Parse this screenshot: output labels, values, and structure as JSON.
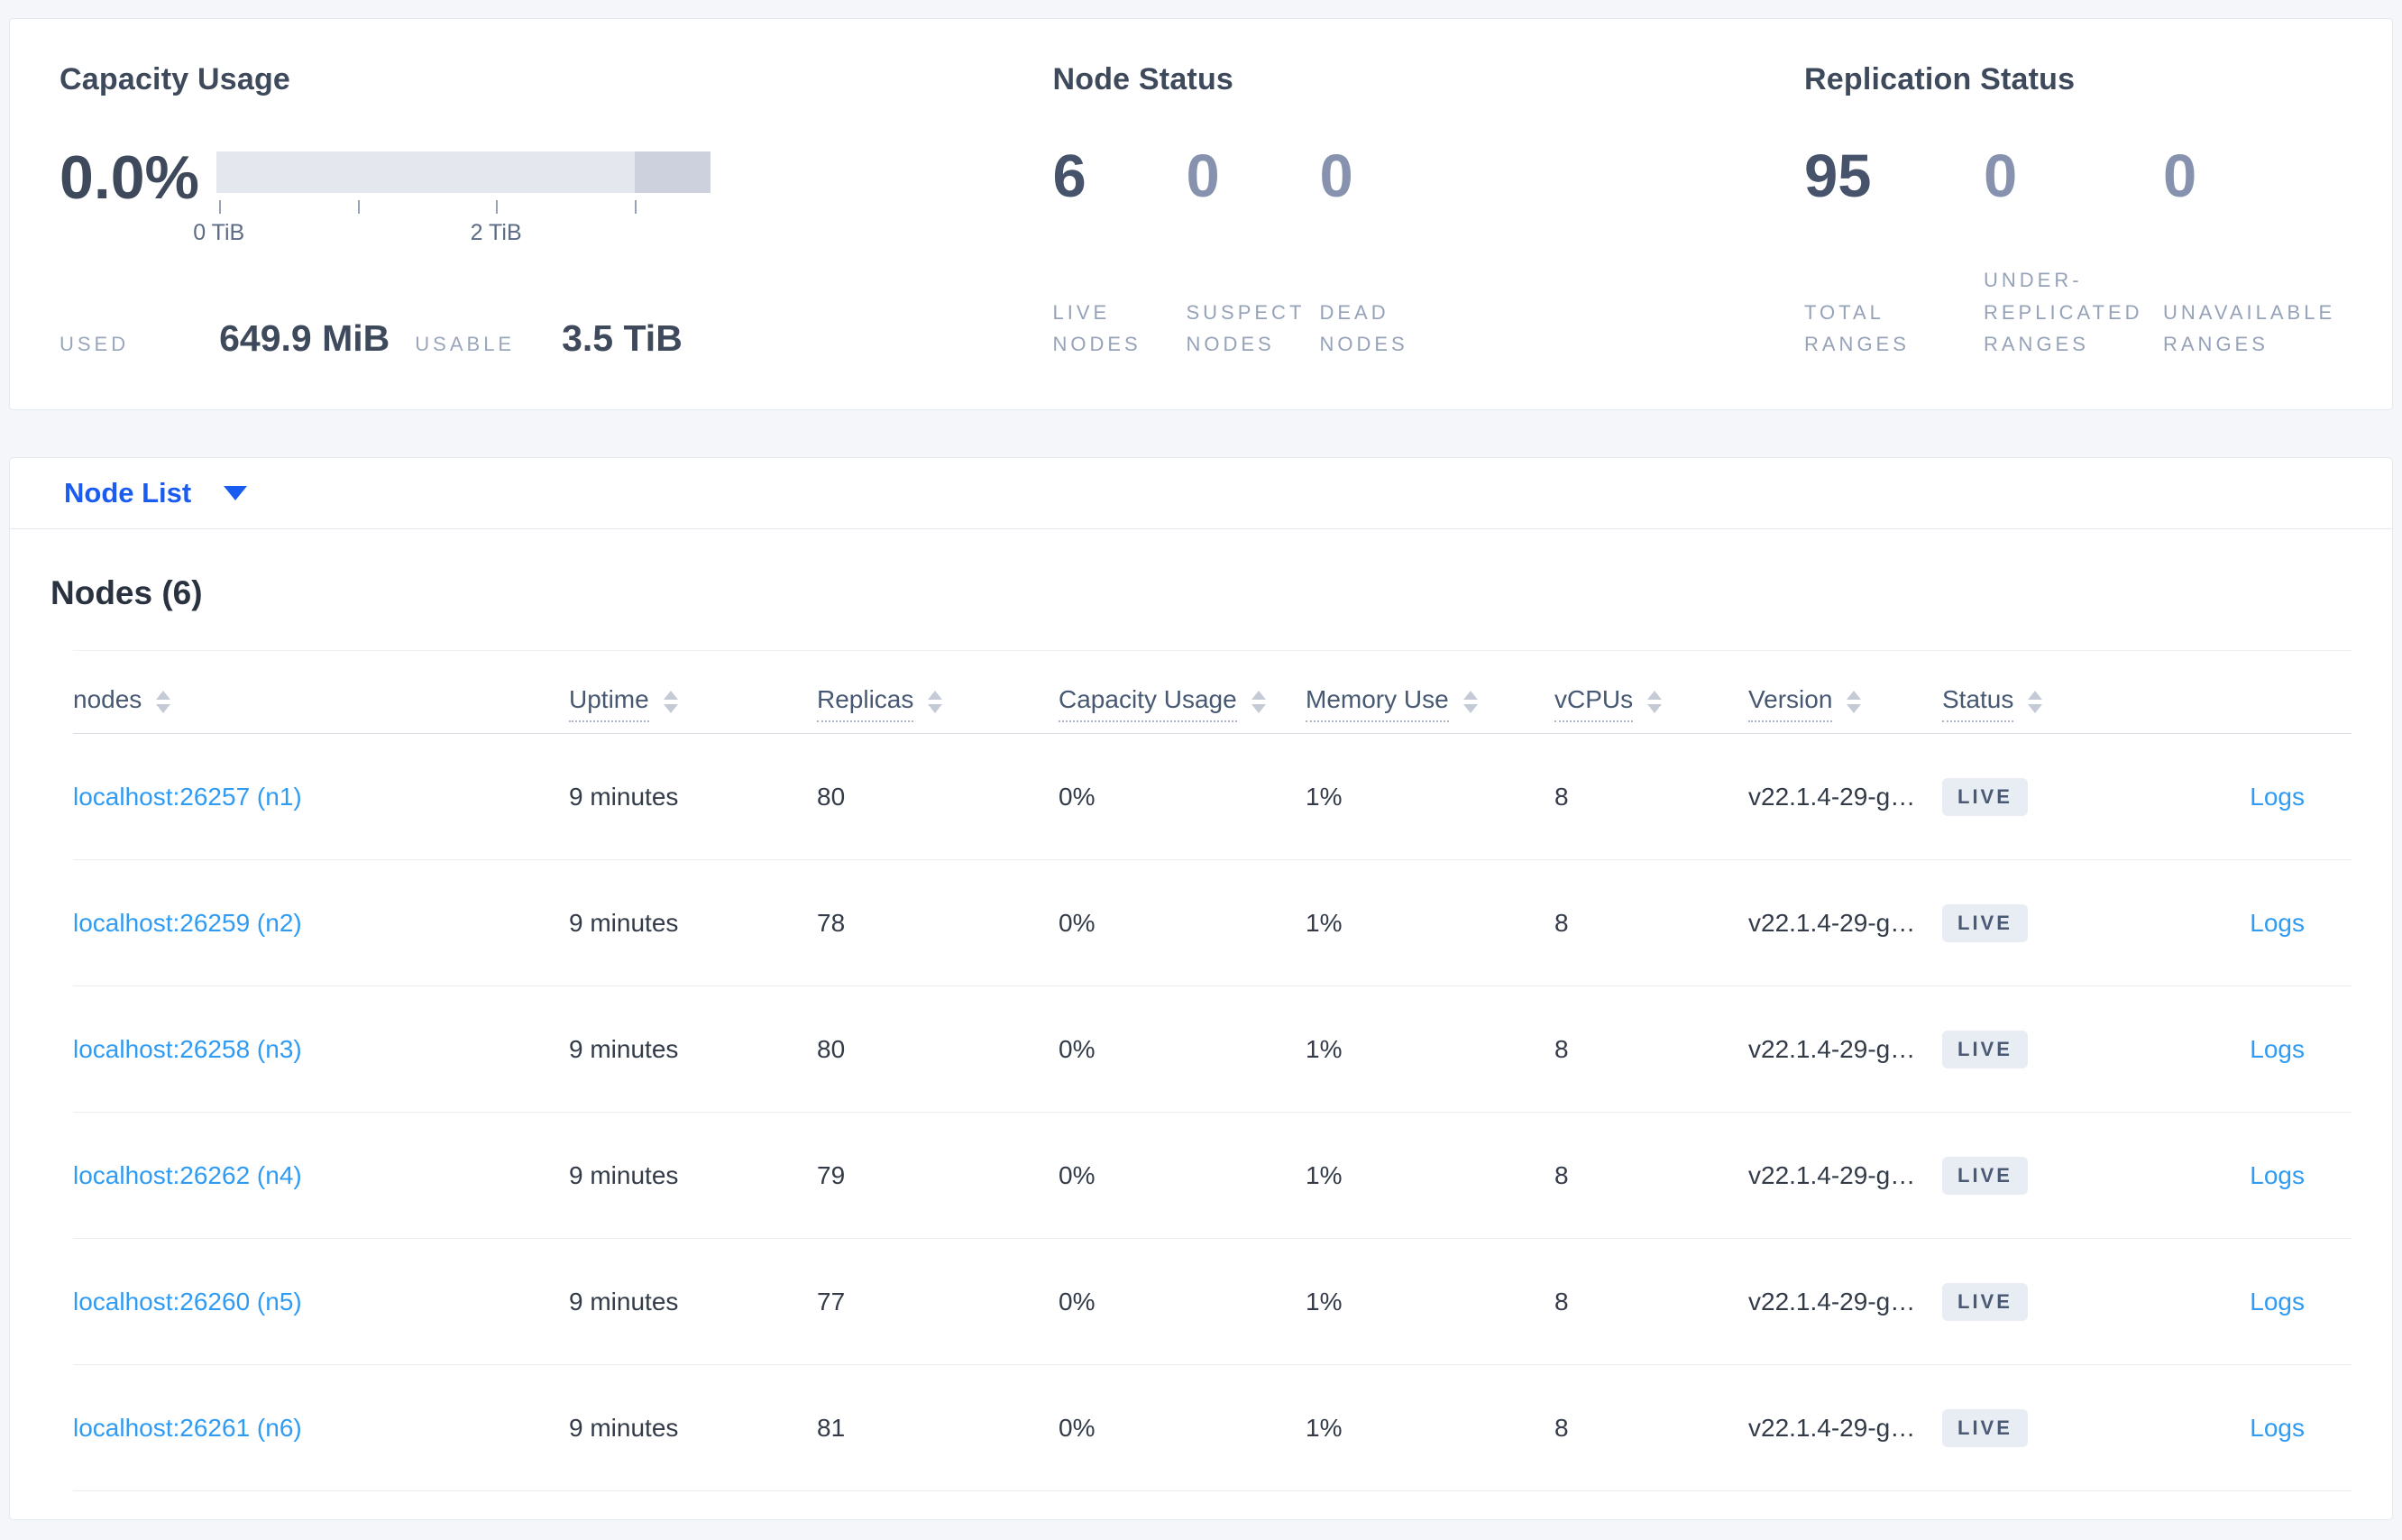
{
  "colors": {
    "page_background": "#f4f6f9",
    "card_background": "#ffffff",
    "primary_blue": "#1a5cf0",
    "link_blue": "#2f9bf3",
    "heading_slate": "#3e4a5c",
    "muted_stat": "#8792ae",
    "caps_label_gray": "#96a2b8",
    "badge_background": "#e8edf4",
    "badge_text": "#4b5a74",
    "bar_track": "#e4e7ee",
    "bar_highlight": "#ccd1dd"
  },
  "summary": {
    "capacity": {
      "title": "Capacity Usage",
      "percent": "0.0%",
      "used_label": "USED",
      "used_value": "649.9 MiB",
      "usable_label": "USABLE",
      "usable_value": "3.5 TiB",
      "bar": {
        "track_color": "#e4e7ee",
        "highlight_color": "#ccd1dd",
        "highlight_start_pct": 84.7,
        "ticks": [
          {
            "pos_pct": 0.5,
            "label": "0 TiB"
          },
          {
            "pos_pct": 28.6,
            "label": ""
          },
          {
            "pos_pct": 56.6,
            "label": "2 TiB"
          },
          {
            "pos_pct": 84.7,
            "label": ""
          }
        ]
      }
    },
    "node_status": {
      "title": "Node Status",
      "stats": [
        {
          "value": "6",
          "label": "LIVE NODES",
          "muted": false
        },
        {
          "value": "0",
          "label": "SUSPECT NODES",
          "muted": true
        },
        {
          "value": "0",
          "label": "DEAD NODES",
          "muted": true
        }
      ]
    },
    "replication_status": {
      "title": "Replication Status",
      "stats": [
        {
          "value": "95",
          "label": "TOTAL RANGES",
          "muted": false
        },
        {
          "value": "0",
          "label": "UNDER-REPLICATED RANGES",
          "muted": true
        },
        {
          "value": "0",
          "label": "UNAVAILABLE RANGES",
          "muted": true
        }
      ]
    }
  },
  "view_selector": {
    "label": "Node List"
  },
  "nodes_section": {
    "title": "Nodes (6)",
    "columns": [
      {
        "label": "nodes",
        "underline": false
      },
      {
        "label": "Uptime",
        "underline": true
      },
      {
        "label": "Replicas",
        "underline": true
      },
      {
        "label": "Capacity Usage",
        "underline": true
      },
      {
        "label": "Memory Use",
        "underline": true
      },
      {
        "label": "vCPUs",
        "underline": true
      },
      {
        "label": "Version",
        "underline": true
      },
      {
        "label": "Status",
        "underline": true
      }
    ],
    "rows": [
      {
        "address": "localhost:26257 (n1)",
        "uptime": "9 minutes",
        "replicas": "80",
        "capacity_usage": "0%",
        "memory_use": "1%",
        "vcpus": "8",
        "version": "v22.1.4-29-g…",
        "status": "LIVE",
        "logs": "Logs"
      },
      {
        "address": "localhost:26259 (n2)",
        "uptime": "9 minutes",
        "replicas": "78",
        "capacity_usage": "0%",
        "memory_use": "1%",
        "vcpus": "8",
        "version": "v22.1.4-29-g…",
        "status": "LIVE",
        "logs": "Logs"
      },
      {
        "address": "localhost:26258 (n3)",
        "uptime": "9 minutes",
        "replicas": "80",
        "capacity_usage": "0%",
        "memory_use": "1%",
        "vcpus": "8",
        "version": "v22.1.4-29-g…",
        "status": "LIVE",
        "logs": "Logs"
      },
      {
        "address": "localhost:26262 (n4)",
        "uptime": "9 minutes",
        "replicas": "79",
        "capacity_usage": "0%",
        "memory_use": "1%",
        "vcpus": "8",
        "version": "v22.1.4-29-g…",
        "status": "LIVE",
        "logs": "Logs"
      },
      {
        "address": "localhost:26260 (n5)",
        "uptime": "9 minutes",
        "replicas": "77",
        "capacity_usage": "0%",
        "memory_use": "1%",
        "vcpus": "8",
        "version": "v22.1.4-29-g…",
        "status": "LIVE",
        "logs": "Logs"
      },
      {
        "address": "localhost:26261 (n6)",
        "uptime": "9 minutes",
        "replicas": "81",
        "capacity_usage": "0%",
        "memory_use": "1%",
        "vcpus": "8",
        "version": "v22.1.4-29-g…",
        "status": "LIVE",
        "logs": "Logs"
      }
    ]
  }
}
